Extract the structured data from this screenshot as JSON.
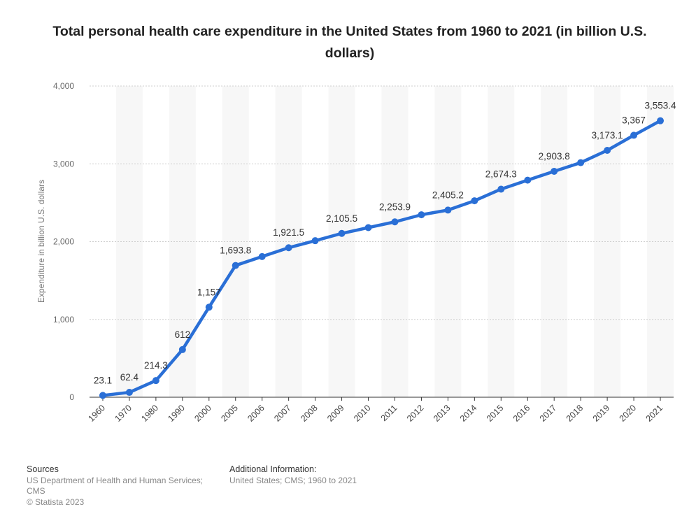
{
  "title": "Total personal health care expenditure in the United States from 1960 to 2021 (in billion U.S. dollars)",
  "footer": {
    "sources_heading": "Sources",
    "sources_line1": "US Department of Health and Human Services;",
    "sources_line2": "CMS",
    "copyright": "© Statista 2023",
    "additional_heading": "Additional Information:",
    "additional_text": "United States; CMS; 1960 to 2021"
  },
  "chart_data": {
    "type": "line",
    "title": "Total personal health care expenditure in the United States from 1960 to 2021 (in billion U.S. dollars)",
    "xlabel": "",
    "ylabel": "Expenditure in billion U.S. dollars",
    "ylim": [
      0,
      4000
    ],
    "yticks": [
      0,
      1000,
      2000,
      3000,
      4000
    ],
    "ytick_labels": [
      "0",
      "1,000",
      "2,000",
      "3,000",
      "4,000"
    ],
    "grid": true,
    "line_color": "#2a6fd6",
    "categories": [
      "1960",
      "1970",
      "1980",
      "1990",
      "2000",
      "2005",
      "2006",
      "2007",
      "2008",
      "2009",
      "2010",
      "2011",
      "2012",
      "2013",
      "2014",
      "2015",
      "2016",
      "2017",
      "2018",
      "2019",
      "2020",
      "2021"
    ],
    "values": [
      23.1,
      62.4,
      214.3,
      612,
      1157,
      1693.8,
      1808,
      1921.5,
      2012,
      2105.5,
      2180,
      2253.9,
      2345,
      2405.2,
      2525,
      2674.3,
      2790,
      2903.8,
      3015,
      3173.1,
      3367,
      3553.4
    ],
    "data_labels": [
      "23.1",
      "62.4",
      "214.3",
      "612",
      "1,157",
      "1,693.8",
      "",
      "1,921.5",
      "",
      "2,105.5",
      "",
      "2,253.9",
      "",
      "2,405.2",
      "",
      "2,674.3",
      "",
      "2,903.8",
      "",
      "3,173.1",
      "3,367",
      "3,553.4"
    ]
  }
}
